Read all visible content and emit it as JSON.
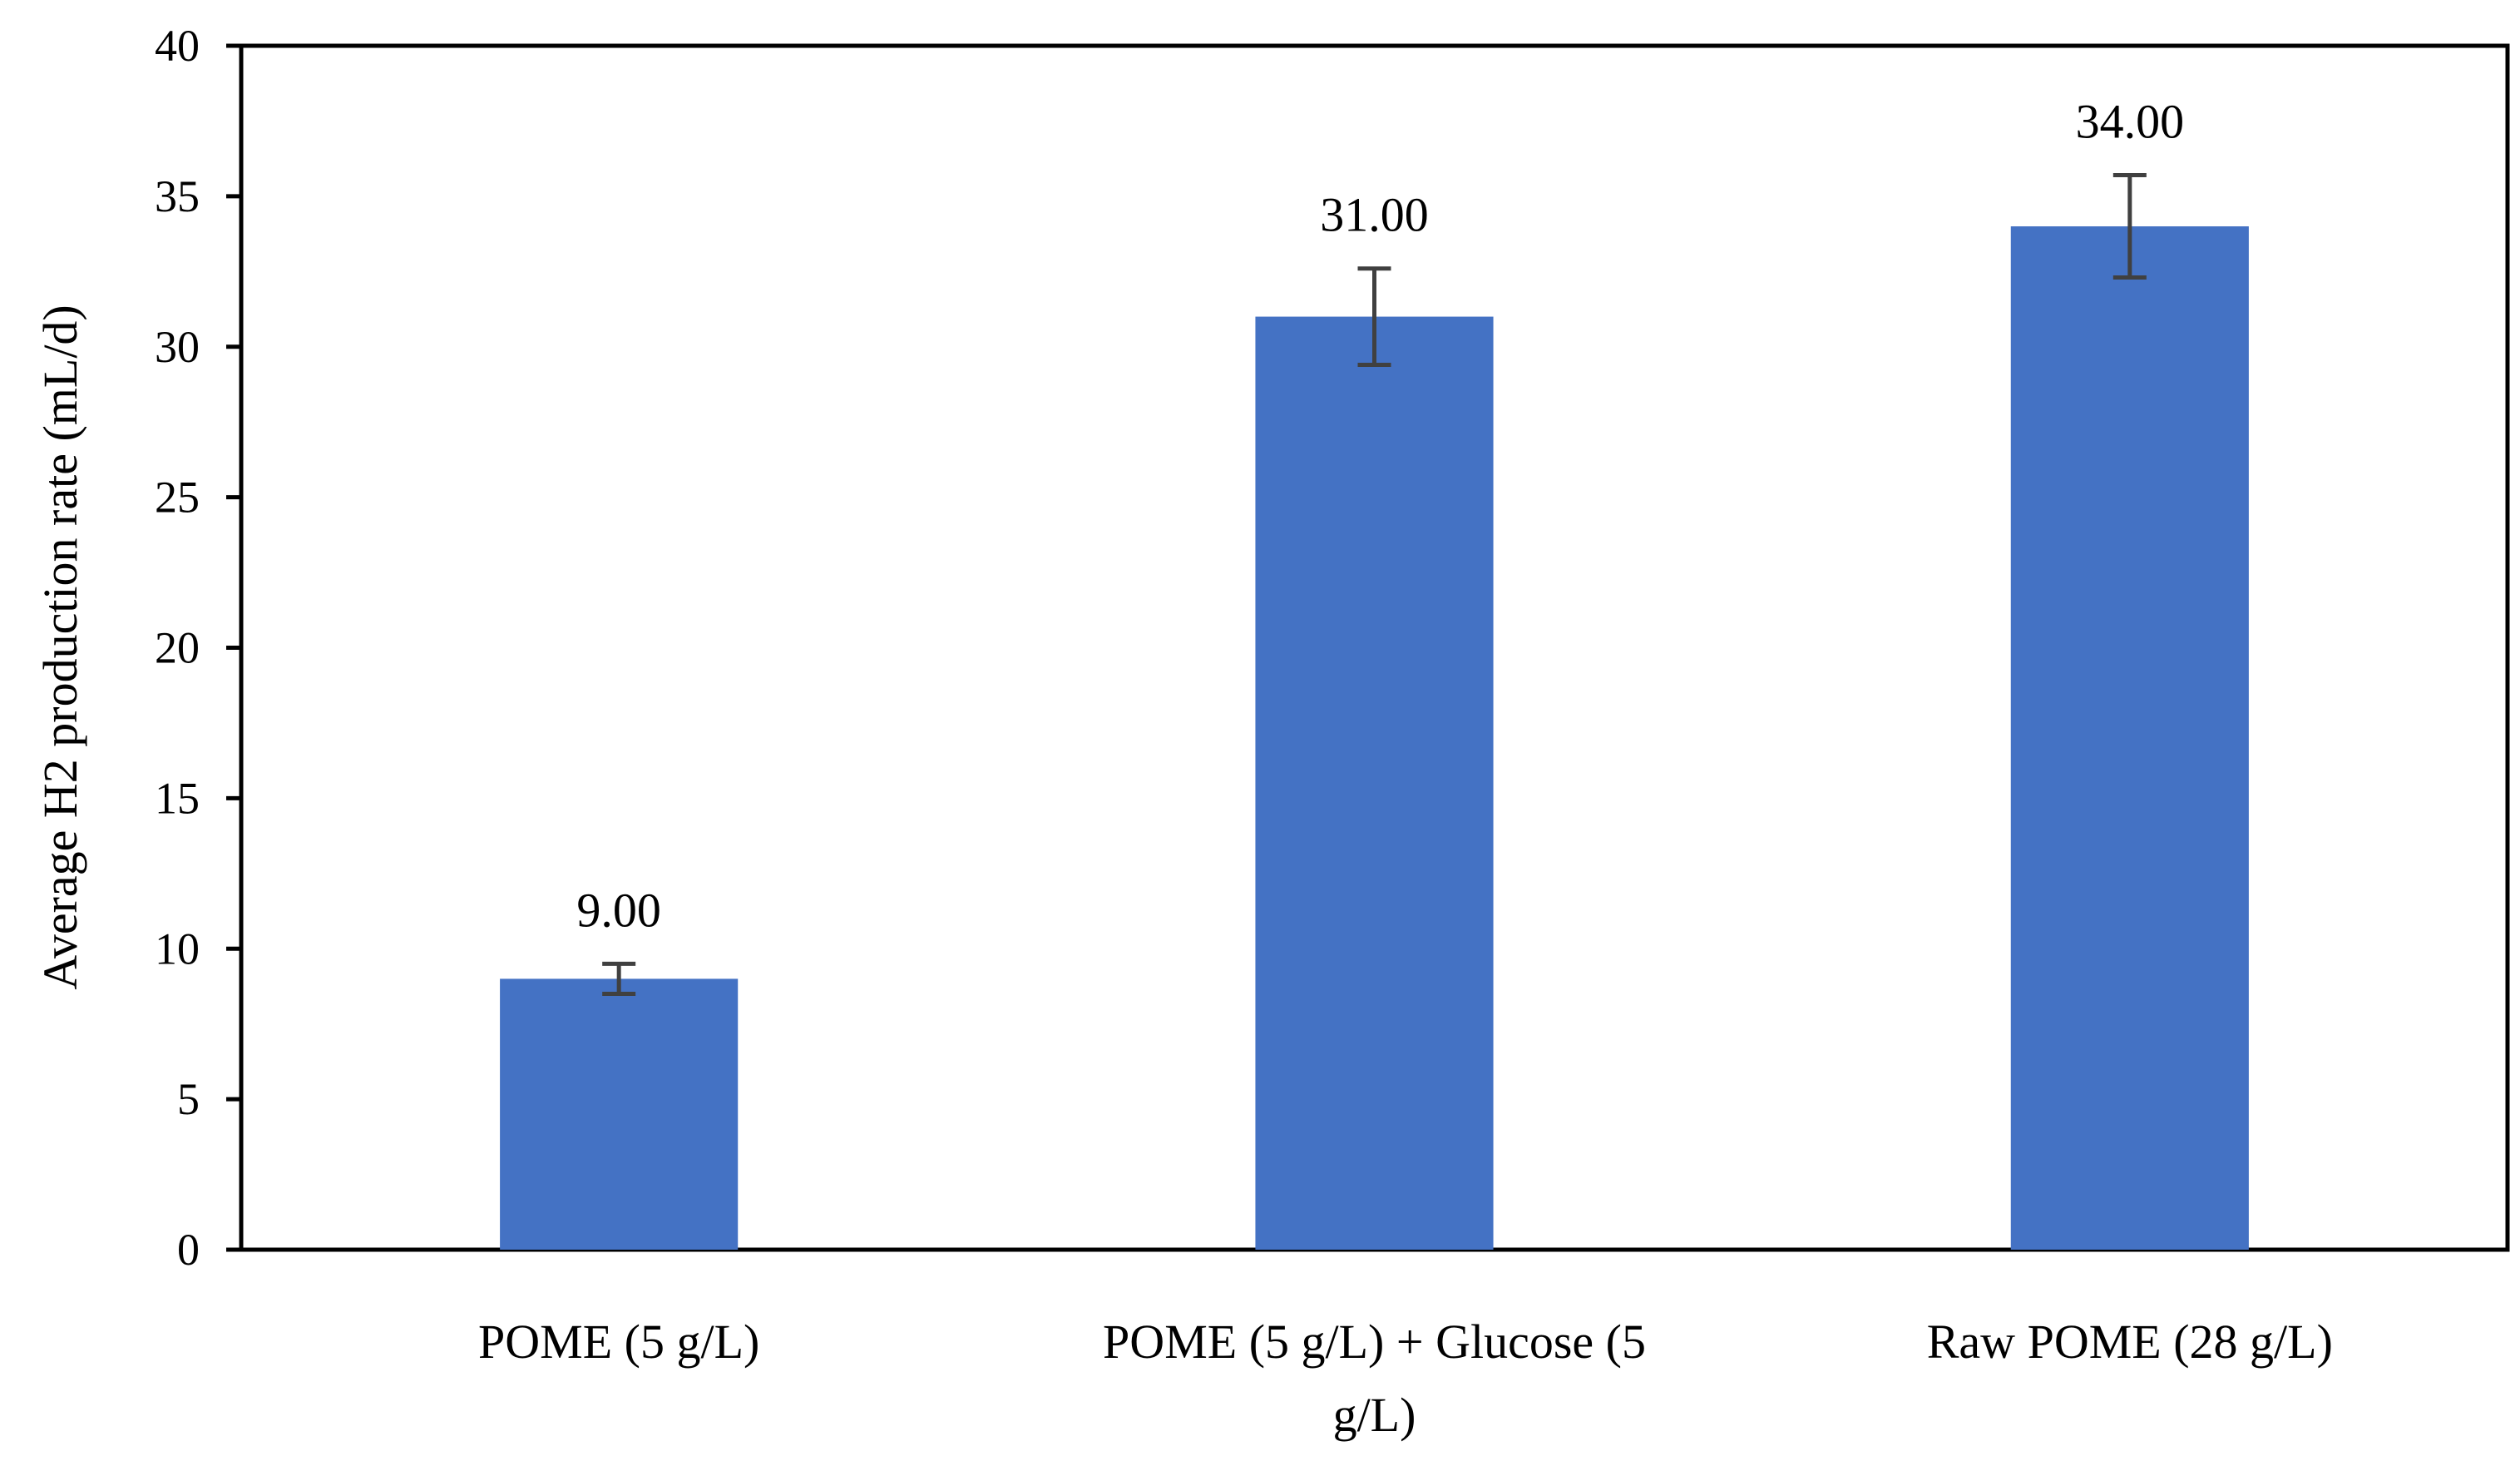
{
  "chart_data": {
    "type": "bar",
    "title": "",
    "xlabel": "",
    "ylabel": "Average H2 production rate (mL/d)",
    "categories": [
      "POME (5 g/L)",
      "POME (5 g/L) + Glucose (5 g/L)",
      "Raw POME (28 g/L)"
    ],
    "category_lines": [
      [
        "POME (5 g/L)"
      ],
      [
        "POME (5 g/L) + Glucose (5",
        "g/L)"
      ],
      [
        "Raw POME (28 g/L)"
      ]
    ],
    "values": [
      9,
      31,
      34
    ],
    "value_labels": [
      "9.00",
      "31.00",
      "34.00"
    ],
    "error_lower": [
      8.5,
      29.4,
      32.3
    ],
    "error_upper": [
      9.5,
      32.6,
      35.7
    ],
    "ylim": [
      0,
      40
    ],
    "y_ticks": [
      0,
      5,
      10,
      15,
      20,
      25,
      30,
      35,
      40
    ],
    "y_tick_labels": [
      "0",
      "5",
      "10",
      "15",
      "20",
      "25",
      "30",
      "35",
      "40"
    ],
    "grid": false,
    "legend": "none",
    "colors": {
      "bar": "#4472C4",
      "error_bar": "#404040",
      "axis": "#000000"
    }
  }
}
